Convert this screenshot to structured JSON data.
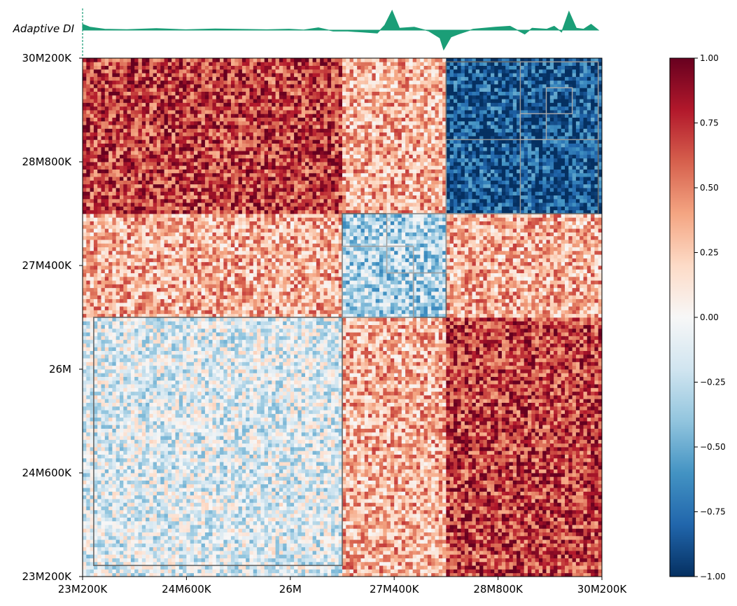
{
  "chart_data": [
    {
      "type": "heatmap",
      "title": "",
      "xlabel": "",
      "ylabel": "",
      "x_ticks": [
        "23M200K",
        "24M600K",
        "26M",
        "27M400K",
        "28M800K",
        "30M200K"
      ],
      "y_ticks": [
        "23M200K",
        "24M600K",
        "26M",
        "27M400K",
        "28M800K",
        "30M200K"
      ],
      "x_range_bp": [
        23200000,
        30200000
      ],
      "y_range_bp": [
        23200000,
        30200000
      ],
      "value_range": [
        -1.0,
        1.0
      ],
      "colormap": "RdBu_r",
      "colormap_stops": [
        "#053061",
        "#2166ac",
        "#4393c3",
        "#92c5de",
        "#d1e5f0",
        "#f7f7f7",
        "#fddbc7",
        "#f4a582",
        "#d6604d",
        "#b2182b",
        "#67001f"
      ],
      "blocks": [
        {
          "x": [
            23200000,
            26700000
          ],
          "y": [
            23200000,
            26700000
          ],
          "sign": "negative-faint"
        },
        {
          "x": [
            26700000,
            28100000
          ],
          "y": [
            26700000,
            28100000
          ],
          "sign": "negative"
        },
        {
          "x": [
            28100000,
            30200000
          ],
          "y": [
            28100000,
            30200000
          ],
          "sign": "negative-strong"
        },
        {
          "x": [
            23200000,
            26700000
          ],
          "y": [
            28100000,
            30200000
          ],
          "sign": "positive-strong"
        },
        {
          "x": [
            28100000,
            30200000
          ],
          "y": [
            23200000,
            26700000
          ],
          "sign": "positive-strong"
        },
        {
          "x": [
            23200000,
            26700000
          ],
          "y": [
            26700000,
            28100000
          ],
          "sign": "positive"
        },
        {
          "x": [
            26700000,
            28100000
          ],
          "y": [
            23200000,
            26700000
          ],
          "sign": "positive"
        },
        {
          "x": [
            28100000,
            30200000
          ],
          "y": [
            26700000,
            28100000
          ],
          "sign": "positive"
        },
        {
          "x": [
            26700000,
            28100000
          ],
          "y": [
            28100000,
            30200000
          ],
          "sign": "positive"
        }
      ],
      "domains": [
        {
          "start": 23350000,
          "end": 26700000,
          "level": 1
        },
        {
          "start": 26700000,
          "end": 28100000,
          "level": 1
        },
        {
          "start": 28100000,
          "end": 30150000,
          "level": 1
        },
        {
          "start": 26700000,
          "end": 27660000,
          "level": 2
        },
        {
          "start": 27300000,
          "end": 28100000,
          "level": 2
        },
        {
          "start": 27300000,
          "end": 27660000,
          "level": 3
        },
        {
          "start": 28100000,
          "end": 29100000,
          "level": 2
        },
        {
          "start": 29100000,
          "end": 30150000,
          "level": 2
        },
        {
          "start": 29100000,
          "end": 29450000,
          "level": 3
        },
        {
          "start": 29450000,
          "end": 29800000,
          "level": 3
        }
      ],
      "colorbar_ticks": [
        "1.00",
        "0.75",
        "0.50",
        "0.25",
        "0.00",
        "−0.25",
        "−0.50",
        "−0.75",
        "−1.00"
      ]
    },
    {
      "type": "area",
      "track_label": "Adaptive DI",
      "color": "#1b9e77",
      "x": [
        23200000,
        23300000,
        23500000,
        23800000,
        24200000,
        24600000,
        25000000,
        25400000,
        25700000,
        26000000,
        26200000,
        26400000,
        26600000,
        26800000,
        27000000,
        27200000,
        27300000,
        27400000,
        27500000,
        27700000,
        27900000,
        28050000,
        28100000,
        28200000,
        28300000,
        28500000,
        28800000,
        29000000,
        29200000,
        29300000,
        29500000,
        29600000,
        29700000,
        29800000,
        29900000,
        30000000,
        30100000,
        30200000
      ],
      "y": [
        0.3,
        0.15,
        0.05,
        0.03,
        0.08,
        0.02,
        0.06,
        0.04,
        0.02,
        0.05,
        0.01,
        0.12,
        -0.05,
        -0.05,
        -0.1,
        -0.15,
        0.25,
        1.0,
        0.1,
        0.15,
        -0.05,
        -0.4,
        -1.0,
        -0.35,
        -0.2,
        0.05,
        0.15,
        0.2,
        -0.2,
        0.1,
        0.05,
        0.2,
        -0.1,
        0.95,
        0.1,
        0.05,
        0.3,
        0.0
      ]
    }
  ]
}
